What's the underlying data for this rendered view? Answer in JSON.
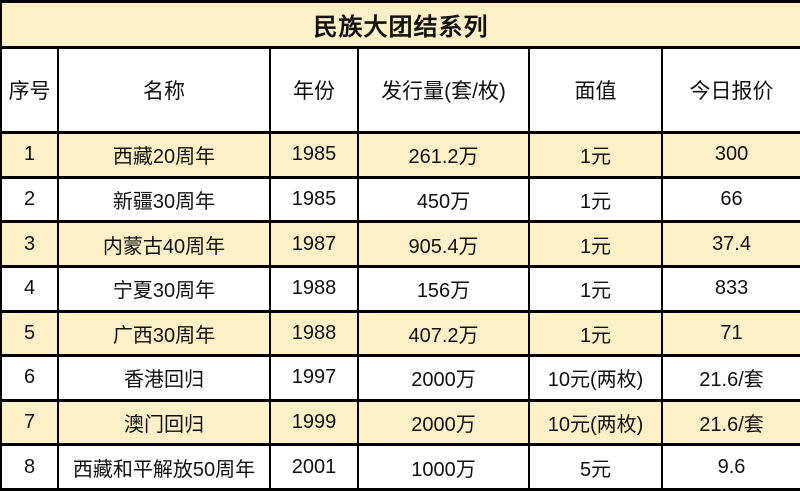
{
  "title": "民族大团结系列",
  "colors": {
    "accent_cream": "#FDF0C6",
    "border": "#000000",
    "text": "#111111",
    "row_white": "#FFFFFF"
  },
  "table": {
    "headers": [
      "序号",
      "名称",
      "年份",
      "发行量(套/枚)",
      "面值",
      "今日报价"
    ],
    "rows": [
      [
        "1",
        "西藏20周年",
        "1985",
        "261.2万",
        "1元",
        "300"
      ],
      [
        "2",
        "新疆30周年",
        "1985",
        "450万",
        "1元",
        "66"
      ],
      [
        "3",
        "内蒙古40周年",
        "1987",
        "905.4万",
        "1元",
        "37.4"
      ],
      [
        "4",
        "宁夏30周年",
        "1988",
        "156万",
        "1元",
        "833"
      ],
      [
        "5",
        "广西30周年",
        "1988",
        "407.2万",
        "1元",
        "71"
      ],
      [
        "6",
        "香港回归",
        "1997",
        "2000万",
        "10元(两枚)",
        "21.6/套"
      ],
      [
        "7",
        "澳门回归",
        "1999",
        "2000万",
        "10元(两枚)",
        "21.6/套"
      ],
      [
        "8",
        "西藏和平解放50周年",
        "2001",
        "1000万",
        "5元",
        "9.6"
      ]
    ]
  },
  "chart_data": {
    "type": "table",
    "title": "民族大团结系列",
    "columns": [
      "序号",
      "名称",
      "年份",
      "发行量(套/枚)",
      "面值",
      "今日报价"
    ],
    "rows": [
      [
        "1",
        "西藏20周年",
        "1985",
        "261.2万",
        "1元",
        "300"
      ],
      [
        "2",
        "新疆30周年",
        "1985",
        "450万",
        "1元",
        "66"
      ],
      [
        "3",
        "内蒙古40周年",
        "1987",
        "905.4万",
        "1元",
        "37.4"
      ],
      [
        "4",
        "宁夏30周年",
        "1988",
        "156万",
        "1元",
        "833"
      ],
      [
        "5",
        "广西30周年",
        "1988",
        "407.2万",
        "1元",
        "71"
      ],
      [
        "6",
        "香港回归",
        "1997",
        "2000万",
        "10元(两枚)",
        "21.6/套"
      ],
      [
        "7",
        "澳门回归",
        "1999",
        "2000万",
        "10元(两枚)",
        "21.6/套"
      ],
      [
        "8",
        "西藏和平解放50周年",
        "2001",
        "1000万",
        "5元",
        "9.6"
      ]
    ],
    "layout_hints": {
      "striped_rows": "odd rows shaded cream",
      "title_row_background": "#FDF0C6",
      "grid": "on"
    }
  }
}
